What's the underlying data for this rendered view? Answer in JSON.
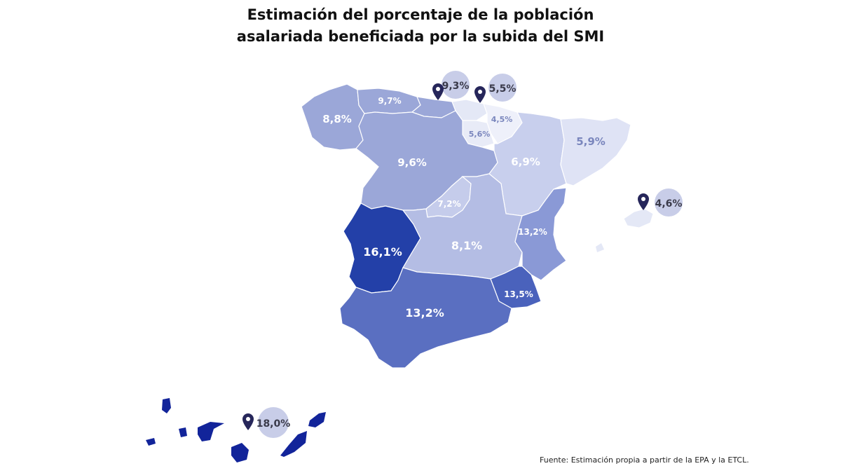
{
  "title": {
    "line1": "Estimación del porcentaje de la población",
    "line2": "asalariada beneficiada por la subida del SMI"
  },
  "source": "Fuente: Estimación propia a partir de la EPA y la ETCL.",
  "colors": {
    "scale_lightest": "#e4e8f6",
    "scale_darkest": "#1c37a0",
    "pin": "#26265a",
    "bubble": "#c8cde8",
    "label_light": "#ffffff",
    "label_dark": "#7a86bd",
    "bubble_text": "#3a3a4a"
  },
  "regions": [
    {
      "id": "galicia",
      "value": "8,8%"
    },
    {
      "id": "asturias",
      "value": "9,7%"
    },
    {
      "id": "cantabria",
      "value": "9,3%"
    },
    {
      "id": "pais-vasco",
      "value": "5,5%"
    },
    {
      "id": "navarra",
      "value": "4,5%"
    },
    {
      "id": "la-rioja",
      "value": "5,6%"
    },
    {
      "id": "castilla-y-leon",
      "value": "9,6%"
    },
    {
      "id": "aragon",
      "value": "6,9%"
    },
    {
      "id": "cataluna",
      "value": "5,9%"
    },
    {
      "id": "madrid",
      "value": "7,2%"
    },
    {
      "id": "extremadura",
      "value": "16,1%"
    },
    {
      "id": "castilla-la-mancha",
      "value": "8,1%"
    },
    {
      "id": "valencia",
      "value": "13,2%"
    },
    {
      "id": "murcia",
      "value": "13,5%"
    },
    {
      "id": "andalucia",
      "value": "13,2%"
    },
    {
      "id": "baleares",
      "value": "4,6%"
    },
    {
      "id": "canarias",
      "value": "18,0%"
    }
  ]
}
